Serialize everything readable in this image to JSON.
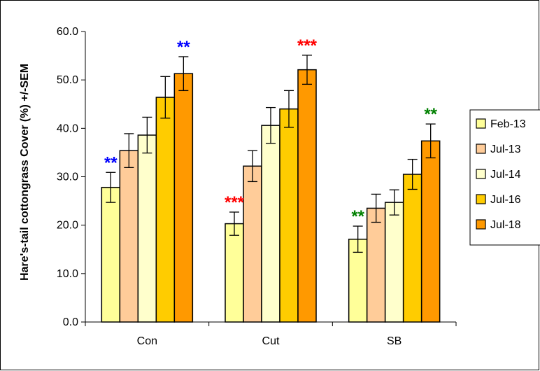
{
  "chart_data": {
    "type": "bar",
    "title": "",
    "xlabel": "",
    "ylabel": "Hare's-tail cottongrass Cover (%) +/-SEM",
    "ylim": [
      0,
      60
    ],
    "yticks": [
      "0.0",
      "10.0",
      "20.0",
      "30.0",
      "40.0",
      "50.0",
      "60.0"
    ],
    "grid": false,
    "legend_position": "right",
    "categories": [
      "Con",
      "Cut",
      "SB"
    ],
    "series": [
      {
        "name": "Feb-13",
        "color": "#FFFF99",
        "values": [
          27.8,
          20.3,
          17.1
        ],
        "errors": [
          3.1,
          2.4,
          2.7
        ]
      },
      {
        "name": "Jul-13",
        "color": "#FFCC99",
        "values": [
          35.4,
          32.2,
          23.5
        ],
        "errors": [
          3.5,
          3.2,
          2.9
        ]
      },
      {
        "name": "Jul-14",
        "color": "#FFFFCC",
        "values": [
          38.6,
          40.6,
          24.7
        ],
        "errors": [
          3.7,
          3.7,
          2.6
        ]
      },
      {
        "name": "Jul-16",
        "color": "#FFCC00",
        "values": [
          46.4,
          44.0,
          30.5
        ],
        "errors": [
          4.3,
          3.8,
          3.1
        ]
      },
      {
        "name": "Jul-18",
        "color": "#FF9900",
        "values": [
          51.3,
          52.1,
          37.4
        ],
        "errors": [
          3.5,
          3.0,
          3.5
        ]
      }
    ],
    "annotations": [
      {
        "text": "**",
        "category": 0,
        "series": 0,
        "color": "#0000FF"
      },
      {
        "text": "**",
        "category": 0,
        "series": 4,
        "color": "#0000FF"
      },
      {
        "text": "***",
        "category": 1,
        "series": 0,
        "color": "#FF0000"
      },
      {
        "text": "***",
        "category": 1,
        "series": 4,
        "color": "#FF0000"
      },
      {
        "text": "**",
        "category": 2,
        "series": 0,
        "color": "#008000"
      },
      {
        "text": "**",
        "category": 2,
        "series": 4,
        "color": "#008000"
      }
    ]
  }
}
